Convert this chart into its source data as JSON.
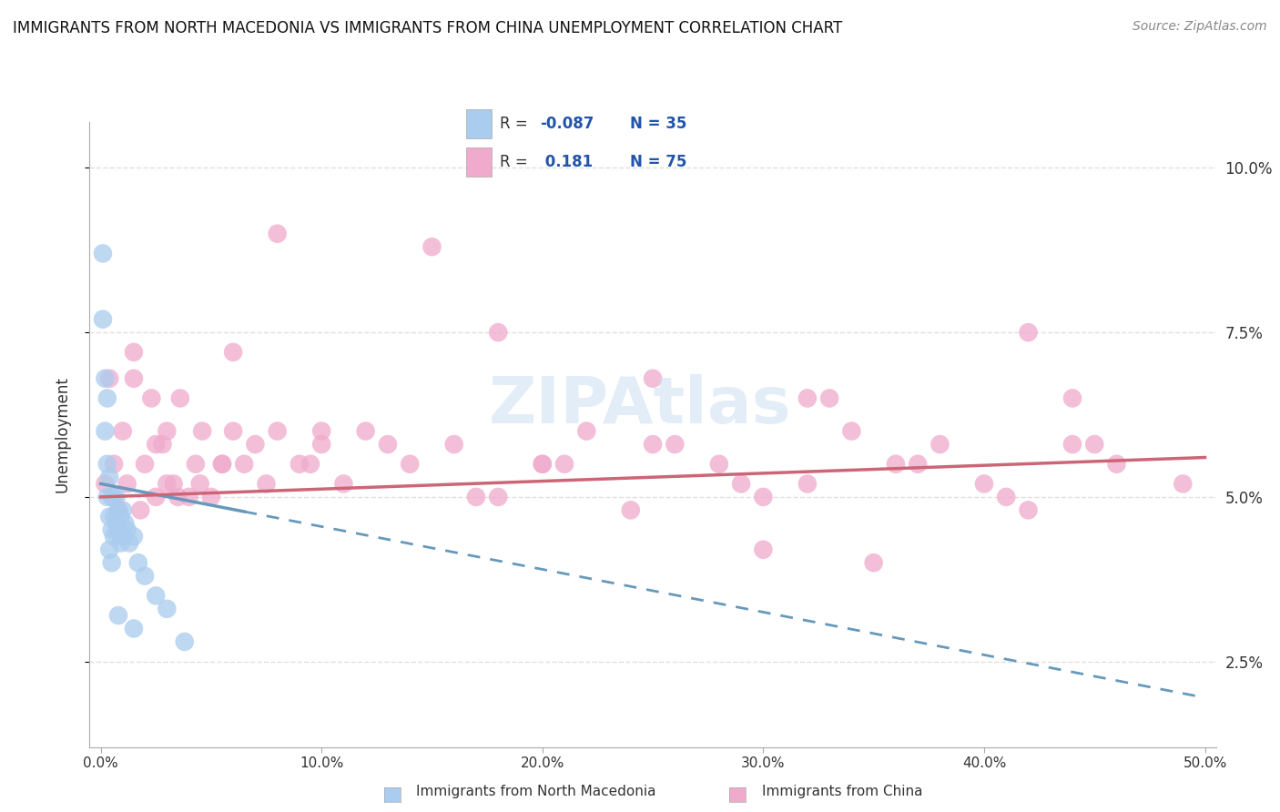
{
  "title": "IMMIGRANTS FROM NORTH MACEDONIA VS IMMIGRANTS FROM CHINA UNEMPLOYMENT CORRELATION CHART",
  "source": "Source: ZipAtlas.com",
  "ylabel": "Unemployment",
  "xlim": [
    -0.005,
    0.505
  ],
  "ylim": [
    0.012,
    0.107
  ],
  "xticks": [
    0.0,
    0.1,
    0.2,
    0.3,
    0.4,
    0.5
  ],
  "xtick_labels": [
    "0.0%",
    "10.0%",
    "20.0%",
    "30.0%",
    "40.0%",
    "50.0%"
  ],
  "yticks": [
    0.025,
    0.05,
    0.075,
    0.1
  ],
  "ytick_labels": [
    "2.5%",
    "5.0%",
    "7.5%",
    "10.0%"
  ],
  "legend_r1": "-0.087",
  "legend_n1": "35",
  "legend_r2": "0.181",
  "legend_n2": "75",
  "nm_color": "#aaccee",
  "china_color": "#f0aacc",
  "trend_blue_color": "#6699bb",
  "trend_pink_color": "#cc6677",
  "background_color": "#ffffff",
  "grid_color": "#e0e0e0",
  "text_color": "#333333",
  "legend_text_color": "#2255aa",
  "watermark_color": "#c8ddf0",
  "nm_x": [
    0.001,
    0.001,
    0.002,
    0.002,
    0.003,
    0.003,
    0.004,
    0.004,
    0.004,
    0.005,
    0.005,
    0.005,
    0.006,
    0.006,
    0.006,
    0.007,
    0.007,
    0.008,
    0.008,
    0.009,
    0.009,
    0.01,
    0.01,
    0.011,
    0.012,
    0.013,
    0.015,
    0.017,
    0.02,
    0.025,
    0.03,
    0.038,
    0.015,
    0.008,
    0.003
  ],
  "nm_y": [
    0.087,
    0.077,
    0.068,
    0.06,
    0.055,
    0.05,
    0.053,
    0.047,
    0.042,
    0.05,
    0.045,
    0.04,
    0.05,
    0.047,
    0.044,
    0.05,
    0.046,
    0.048,
    0.045,
    0.047,
    0.043,
    0.048,
    0.044,
    0.046,
    0.045,
    0.043,
    0.044,
    0.04,
    0.038,
    0.035,
    0.033,
    0.028,
    0.03,
    0.032,
    0.065
  ],
  "china_x": [
    0.002,
    0.004,
    0.006,
    0.008,
    0.01,
    0.012,
    0.015,
    0.018,
    0.02,
    0.023,
    0.025,
    0.028,
    0.03,
    0.033,
    0.036,
    0.04,
    0.043,
    0.046,
    0.05,
    0.055,
    0.06,
    0.065,
    0.07,
    0.08,
    0.09,
    0.1,
    0.11,
    0.12,
    0.14,
    0.16,
    0.18,
    0.2,
    0.22,
    0.24,
    0.26,
    0.28,
    0.3,
    0.32,
    0.34,
    0.36,
    0.38,
    0.4,
    0.42,
    0.44,
    0.46,
    0.015,
    0.025,
    0.035,
    0.045,
    0.055,
    0.075,
    0.095,
    0.13,
    0.17,
    0.21,
    0.25,
    0.29,
    0.33,
    0.37,
    0.41,
    0.45,
    0.49,
    0.08,
    0.15,
    0.25,
    0.35,
    0.18,
    0.3,
    0.42,
    0.06,
    0.1,
    0.2,
    0.32,
    0.44,
    0.03
  ],
  "china_y": [
    0.052,
    0.068,
    0.055,
    0.048,
    0.06,
    0.052,
    0.072,
    0.048,
    0.055,
    0.065,
    0.05,
    0.058,
    0.06,
    0.052,
    0.065,
    0.05,
    0.055,
    0.06,
    0.05,
    0.055,
    0.06,
    0.055,
    0.058,
    0.06,
    0.055,
    0.058,
    0.052,
    0.06,
    0.055,
    0.058,
    0.05,
    0.055,
    0.06,
    0.048,
    0.058,
    0.055,
    0.05,
    0.052,
    0.06,
    0.055,
    0.058,
    0.052,
    0.048,
    0.058,
    0.055,
    0.068,
    0.058,
    0.05,
    0.052,
    0.055,
    0.052,
    0.055,
    0.058,
    0.05,
    0.055,
    0.058,
    0.052,
    0.065,
    0.055,
    0.05,
    0.058,
    0.052,
    0.09,
    0.088,
    0.068,
    0.04,
    0.075,
    0.042,
    0.075,
    0.072,
    0.06,
    0.055,
    0.065,
    0.065,
    0.052
  ],
  "nm_trend_x": [
    0.0,
    0.5
  ],
  "nm_trend_y_start": 0.052,
  "nm_trend_slope": -0.065,
  "china_trend_y_start": 0.05,
  "china_trend_slope": 0.012
}
